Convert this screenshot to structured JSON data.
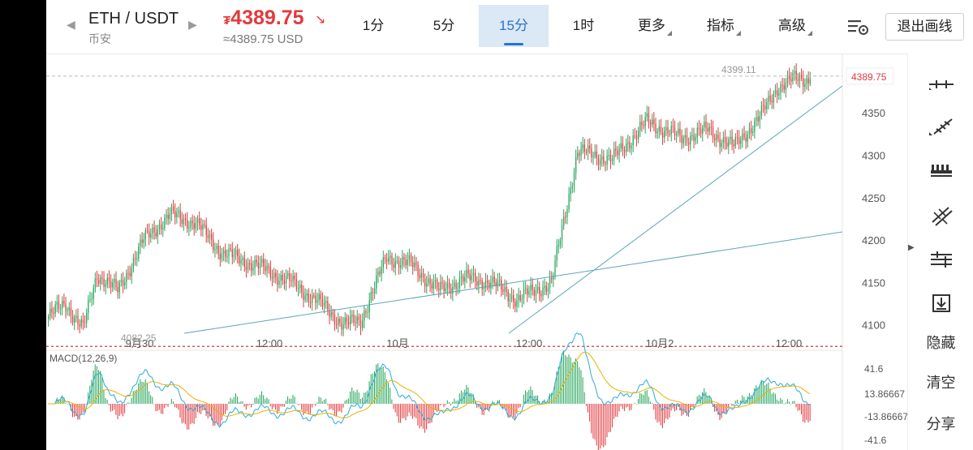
{
  "header": {
    "pair": "ETH / USDT",
    "exchange": "币安",
    "price": "4389.75",
    "price_currency_symbol": "₮",
    "price_usd": "≈4389.75 USD",
    "price_color": "#e4393c"
  },
  "tabs": [
    {
      "label": "1分",
      "active": false
    },
    {
      "label": "5分",
      "active": false
    },
    {
      "label": "15分",
      "active": true
    },
    {
      "label": "1时",
      "active": false
    },
    {
      "label": "更多",
      "active": false,
      "dropdown": true
    },
    {
      "label": "指标",
      "active": false,
      "dropdown": true
    },
    {
      "label": "高级",
      "active": false,
      "dropdown": true
    }
  ],
  "exit_button": "退出画线",
  "sidebar_tools": {
    "hide": "隐藏",
    "clear": "清空",
    "share": "分享",
    "icons": [
      "horizontal-line-icon",
      "ray-line-icon",
      "price-range-icon",
      "parallel-channel-icon",
      "fib-lines-icon",
      "save-drawing-icon"
    ]
  },
  "chart_data": {
    "type": "candlestick",
    "y_ticks": [
      "4350",
      "4300",
      "4250",
      "4200",
      "4150",
      "4100"
    ],
    "x_ticks": [
      "9月30",
      "12:00",
      "10月",
      "12:00",
      "10月2",
      "12:00"
    ],
    "last_price_label": "4389.75",
    "high_label": "4399.11",
    "low_label": "4082.25",
    "up_color": "#26a65b",
    "down_color": "#e4393c",
    "ylim": [
      4070,
      4420
    ],
    "macd": {
      "label": "MACD(12,26,9)",
      "y_ticks": [
        "41.6",
        "13.86667",
        "-13.86667",
        "-41.6"
      ]
    }
  }
}
